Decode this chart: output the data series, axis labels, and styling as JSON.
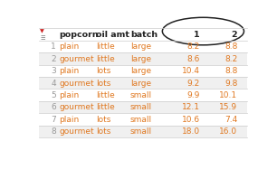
{
  "row_indices": [
    "1",
    "2",
    "3",
    "4",
    "5",
    "6",
    "7",
    "8"
  ],
  "col_popcorn": [
    "plain",
    "gourmet",
    "plain",
    "gourmet",
    "plain",
    "gourmet",
    "plain",
    "gourmet"
  ],
  "col_oil_amt": [
    "little",
    "little",
    "lots",
    "lots",
    "little",
    "little",
    "lots",
    "lots"
  ],
  "col_batch": [
    "large",
    "large",
    "large",
    "large",
    "small",
    "small",
    "small",
    "small"
  ],
  "col_1": [
    8.2,
    8.6,
    10.4,
    9.2,
    9.9,
    12.1,
    10.6,
    18.0
  ],
  "col_2": [
    8.8,
    8.2,
    8.8,
    9.8,
    10.1,
    15.9,
    7.4,
    16.0
  ],
  "header_text": [
    "popcorn",
    "oil amt",
    "batch",
    "1",
    "2"
  ],
  "bg_color": "#ffffff",
  "text_color_cat": "#e07820",
  "text_color_num": "#e07820",
  "text_color_header": "#222222",
  "text_color_index": "#999999",
  "grid_color": "#cccccc",
  "icon_color": "#cc2222",
  "ellipse_color": "#222222",
  "row_stripe_color": "#f0f0f0"
}
